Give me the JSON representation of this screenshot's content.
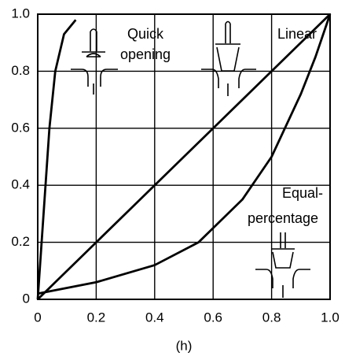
{
  "chart_data": {
    "type": "line",
    "xlim": [
      0,
      1
    ],
    "ylim": [
      0,
      1
    ],
    "xticks": [
      0,
      0.2,
      0.4,
      0.6,
      0.8,
      {
        "value": 1,
        "label": "1.0"
      }
    ],
    "yticks": [
      0,
      0.2,
      0.4,
      0.6,
      0.8,
      {
        "value": 1,
        "label": "1.0"
      }
    ],
    "grid": true,
    "xlabel": "(h)",
    "annotations": [
      "Quick",
      "opening",
      "Linear",
      "Equal-",
      "percentage"
    ],
    "series": [
      {
        "color": "#000000",
        "x": [
          0,
          0.02,
          0.04,
          0.06,
          0.09,
          0.13
        ],
        "values": [
          0,
          0.3,
          0.6,
          0.8,
          0.93,
          0.98
        ]
      },
      {
        "color": "#000000",
        "x": [
          0,
          1
        ],
        "values": [
          0,
          1
        ]
      },
      {
        "color": "#000000",
        "x": [
          0,
          0.1,
          0.2,
          0.4,
          0.55,
          0.6,
          0.7,
          0.8,
          0.9,
          0.95,
          1
        ],
        "values": [
          0.02,
          0.04,
          0.06,
          0.12,
          0.2,
          0.25,
          0.35,
          0.5,
          0.72,
          0.85,
          1
        ]
      }
    ]
  }
}
